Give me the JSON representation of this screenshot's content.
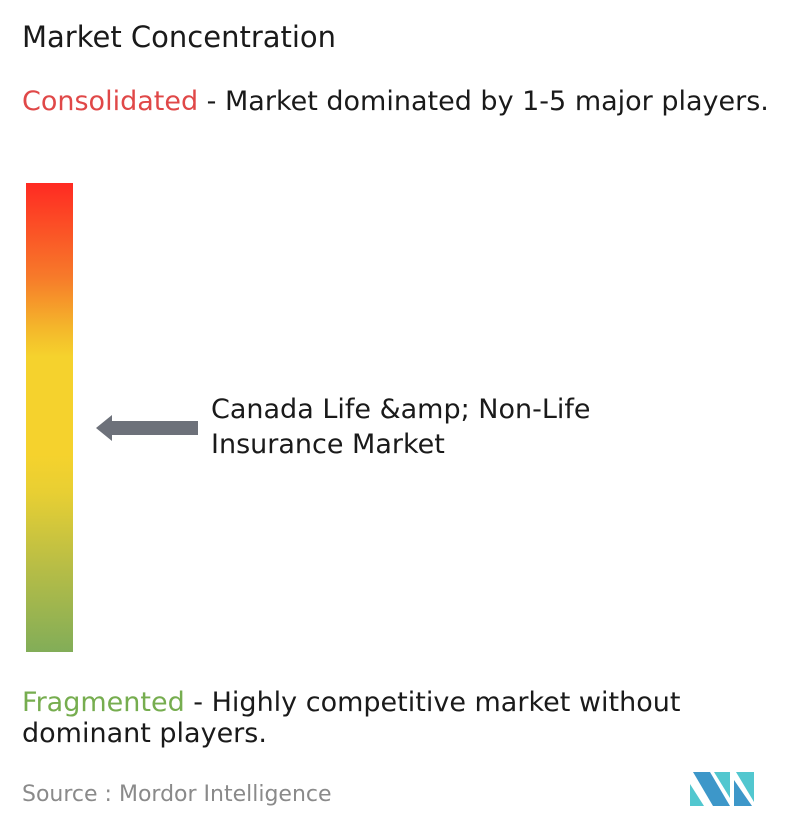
{
  "title": "Market Concentration",
  "consolidated": {
    "label": "Consolidated",
    "description": " - Market dominated by 1-5 major players.",
    "color": "#e04848"
  },
  "fragmented": {
    "label": "Fragmented",
    "description": " - Highly competitive market without dominant players.",
    "color": "#76ad4f"
  },
  "market_label": "Canada Life &amp; Non-Life Insurance Market",
  "source": {
    "prefix": "Source : ",
    "name": "Mordor Intelligence"
  },
  "logo": "Mordor Intelligence logo",
  "arrow_color": "#6d717a"
}
